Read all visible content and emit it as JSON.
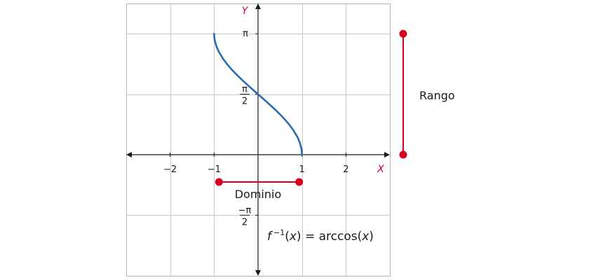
{
  "chart_data": {
    "type": "line",
    "title": "",
    "xlabel": "X",
    "ylabel": "Y",
    "xlim": [
      -3,
      3
    ],
    "ylim": [
      -2.8,
      3.6
    ],
    "grid": true,
    "x_ticks": [
      {
        "value": -2,
        "label": "−2"
      },
      {
        "value": -1,
        "label": "−1"
      },
      {
        "value": 1,
        "label": "1"
      },
      {
        "value": 2,
        "label": "2"
      }
    ],
    "y_ticks": [
      {
        "value": 3.14159,
        "num": "π",
        "den": ""
      },
      {
        "value": 1.5708,
        "num": "π",
        "den": "2"
      },
      {
        "value": -1.5708,
        "num": "−π",
        "den": "2"
      }
    ],
    "series": [
      {
        "color": "#2b6cb0",
        "x": [
          -1,
          -0.99,
          -0.95,
          -0.9,
          -0.8,
          -0.7,
          -0.6,
          -0.5,
          -0.4,
          -0.3,
          -0.2,
          -0.1,
          0,
          0.1,
          0.2,
          0.3,
          0.4,
          0.5,
          0.6,
          0.7,
          0.8,
          0.9,
          0.95,
          0.99,
          1
        ],
        "y": [
          3.1416,
          3.0001,
          2.824,
          2.6906,
          2.4981,
          2.3462,
          2.2143,
          2.0944,
          1.9823,
          1.8755,
          1.7722,
          1.671,
          1.5708,
          1.4706,
          1.3694,
          1.2661,
          1.1593,
          1.0472,
          0.9273,
          0.7954,
          0.6435,
          0.451,
          0.3176,
          0.1415,
          0
        ]
      }
    ],
    "annotations": {
      "domain": {
        "label": "Dominio",
        "from": -1,
        "to": 1,
        "color": "#d6001c"
      },
      "range": {
        "label": "Rango",
        "from": 0,
        "to": 3.14159,
        "color": "#d6001c"
      },
      "formula": {
        "f": "f",
        "sup": "−1",
        "open": "(",
        "var": "x",
        "close": ")",
        "eq": " = arccos(",
        "var2": "x",
        "end": ")"
      }
    }
  }
}
